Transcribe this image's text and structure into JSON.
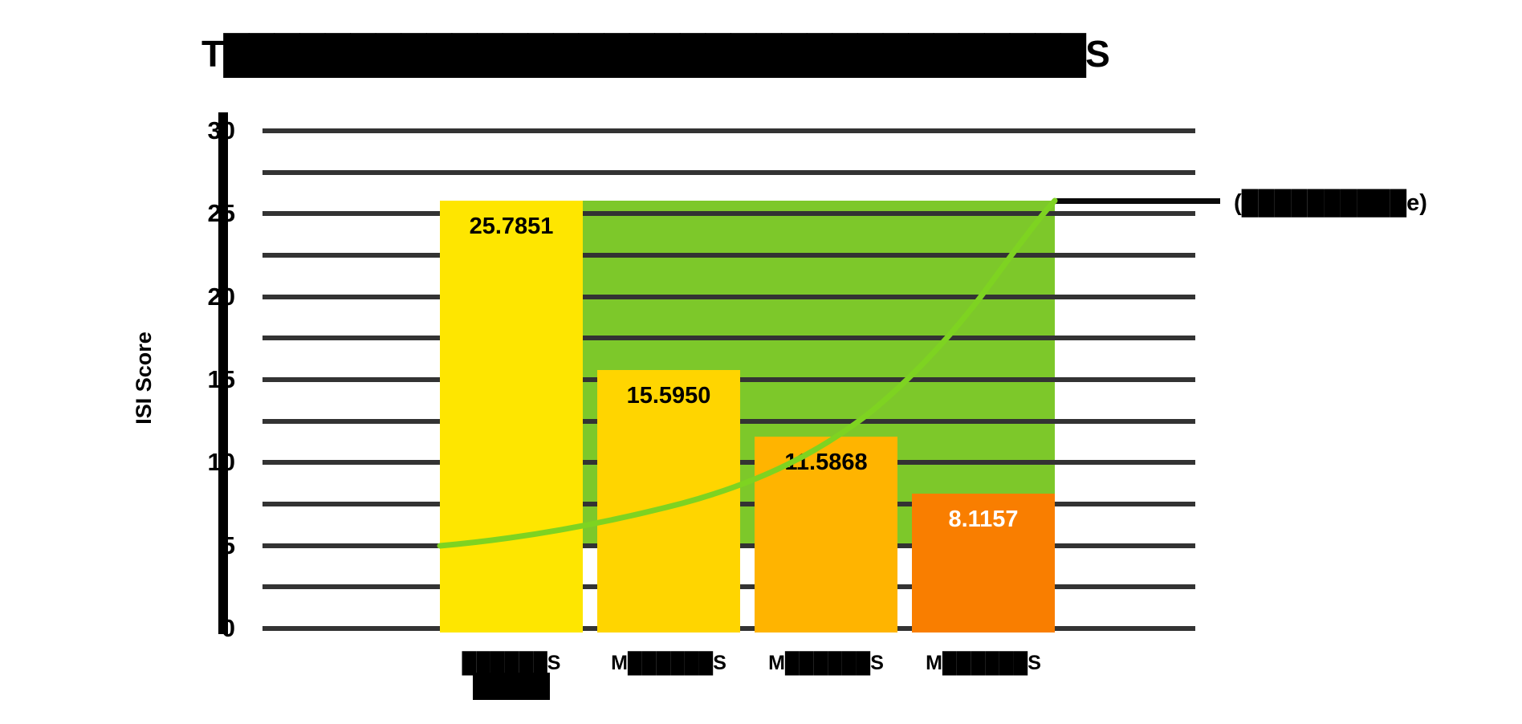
{
  "title": "T██████████████████████████████████S",
  "y_axis": {
    "label": "ISI Score",
    "ticks": [
      "30",
      "25",
      "20",
      "15",
      "10",
      "5",
      "0"
    ]
  },
  "x_axis": {
    "labels": [
      "██████S",
      "M██████S",
      "M██████S",
      "M██████S"
    ],
    "first_label_has_redaction_box_below": true
  },
  "legend": {
    "label": "(██████████e)"
  },
  "colors": {
    "bars": [
      "#FEE600",
      "#FFD500",
      "#FFB400",
      "#F97E00"
    ],
    "bar_label_text": [
      "#000000",
      "#000000",
      "#000000",
      "#ffffff"
    ],
    "area_band": "#7DC82A",
    "trend_curve": "#7ED321",
    "gridline": "#333333",
    "axis": "#000000",
    "reference_line": "#0a0a0a"
  },
  "chart_data": {
    "type": "bar",
    "categories": [
      "██████S",
      "M██████S",
      "M██████S",
      "M██████S"
    ],
    "values": [
      25.7851,
      15.595,
      11.5868,
      8.1157
    ],
    "bar_value_labels": [
      "25.7851",
      "15.5950",
      "11.5868",
      "8.1157"
    ],
    "title": "T██████████████████████████████████S",
    "xlabel": "",
    "ylabel": "ISI Score",
    "ylim": [
      0,
      30
    ],
    "ytick_labels": [
      30,
      25,
      20,
      15,
      10,
      5,
      0
    ],
    "gridline_interval": 2.5,
    "grid": "horizontal",
    "legend_position": "right",
    "overlays": {
      "area_band": {
        "description": "green band behind bars spanning bars 1-4",
        "from_value": 5,
        "to_value": 25.7851
      },
      "trend_curve": {
        "description": "rising convex curve from band bottom-left to band top-right",
        "start_value": 5,
        "end_value": 25.7851,
        "shape": "exponential-rise"
      },
      "reference_line": {
        "value": 25.7851,
        "label": "(██████████e)"
      }
    }
  }
}
